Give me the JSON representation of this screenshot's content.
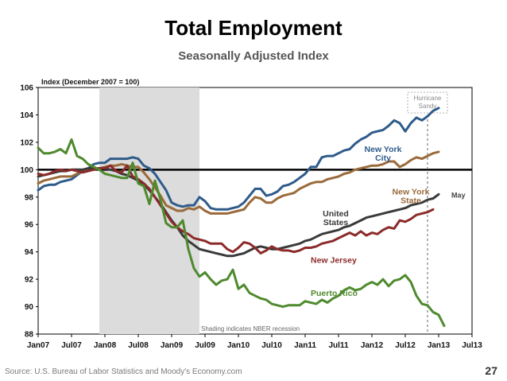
{
  "page": {
    "number": "27"
  },
  "source": "Source: U.S. Bureau of Labor Statistics and Moody's Economy.com",
  "chart_data": {
    "type": "line",
    "title": "Total Employment",
    "subtitle": "Seasonally Adjusted Index",
    "ylabel": "Index (December 2007 = 100)",
    "xlabel": "",
    "ylim": [
      88,
      106
    ],
    "yticks": [
      88,
      90,
      92,
      94,
      96,
      98,
      100,
      102,
      104,
      106
    ],
    "x_start": "2007-01",
    "x_end": "2013-07",
    "xticks": [
      {
        "label": "Jan07",
        "m": 0
      },
      {
        "label": "Jul07",
        "m": 6
      },
      {
        "label": "Jan08",
        "m": 12
      },
      {
        "label": "Jul08",
        "m": 18
      },
      {
        "label": "Jan09",
        "m": 24
      },
      {
        "label": "Jul09",
        "m": 30
      },
      {
        "label": "Jan10",
        "m": 36
      },
      {
        "label": "Jul10",
        "m": 42
      },
      {
        "label": "Jan11",
        "m": 48
      },
      {
        "label": "Jul11",
        "m": 54
      },
      {
        "label": "Jan12",
        "m": 60
      },
      {
        "label": "Jul12",
        "m": 66
      },
      {
        "label": "Jan13",
        "m": 72
      },
      {
        "label": "Jul13",
        "m": 78
      }
    ],
    "reference_line": 100,
    "recession": {
      "start_m": 11,
      "end_m": 29,
      "note": "Shading indicates NBER recession"
    },
    "event": {
      "m": 70,
      "label_lines": [
        "Hurricane",
        "Sandy"
      ]
    },
    "colors": {
      "new_york_city": "#2e5b8a",
      "new_york_state": "#9a6a3a",
      "united_states": "#3a3a3a",
      "new_jersey": "#8c2a2a",
      "puerto_rico": "#4e8a2e",
      "reference": "#000000",
      "recession": "#dcdcdc"
    },
    "series": [
      {
        "name": "New York City",
        "key": "new_york_city",
        "label_lines": [
          "New York",
          "City"
        ],
        "label_at": [
          62,
          101.3
        ],
        "anchor": "middle",
        "width": 3,
        "values": [
          98.5,
          98.8,
          98.9,
          98.9,
          99.1,
          99.2,
          99.3,
          99.6,
          99.9,
          100.1,
          100.4,
          100.5,
          100.5,
          100.8,
          100.8,
          100.8,
          100.8,
          100.9,
          100.8,
          100.3,
          100.1,
          99.7,
          99.1,
          98.5,
          97.6,
          97.4,
          97.3,
          97.4,
          97.4,
          98.0,
          97.7,
          97.2,
          97.1,
          97.1,
          97.1,
          97.2,
          97.3,
          97.6,
          98.1,
          98.6,
          98.6,
          98.1,
          98.2,
          98.4,
          98.8,
          98.9,
          99.1,
          99.4,
          99.7,
          100.2,
          100.2,
          100.9,
          101.0,
          101.0,
          101.2,
          101.4,
          101.5,
          101.9,
          102.2,
          102.4,
          102.7,
          102.8,
          102.9,
          103.2,
          103.6,
          103.4,
          102.8,
          103.4,
          103.8,
          103.6,
          103.9,
          104.3,
          104.5
        ]
      },
      {
        "name": "New York State",
        "key": "new_york_state",
        "label_lines": [
          "New York",
          "State"
        ],
        "label_at": [
          67,
          98.2
        ],
        "anchor": "middle",
        "width": 3,
        "values": [
          99.0,
          99.2,
          99.3,
          99.4,
          99.5,
          99.5,
          99.5,
          99.7,
          99.9,
          100.0,
          100.1,
          100.1,
          100.2,
          100.3,
          100.3,
          100.4,
          100.3,
          100.2,
          100.2,
          99.8,
          99.3,
          98.7,
          98.1,
          97.4,
          97.2,
          97.0,
          97.0,
          97.2,
          97.1,
          97.3,
          97.0,
          96.8,
          96.8,
          96.8,
          96.8,
          96.9,
          97.0,
          97.1,
          97.6,
          98.0,
          97.9,
          97.6,
          97.6,
          97.9,
          98.1,
          98.2,
          98.3,
          98.6,
          98.8,
          99.0,
          99.1,
          99.1,
          99.3,
          99.4,
          99.5,
          99.7,
          99.8,
          100.0,
          100.1,
          100.2,
          100.3,
          100.3,
          100.4,
          100.6,
          100.6,
          100.2,
          100.4,
          100.7,
          100.9,
          100.8,
          101.0,
          101.2,
          101.3
        ]
      },
      {
        "name": "United States",
        "key": "united_states",
        "label_lines": [
          "United",
          "States"
        ],
        "label_at": [
          53.5,
          96.6
        ],
        "anchor": "middle",
        "width": 3,
        "values": [
          99.5,
          99.6,
          99.7,
          99.8,
          99.9,
          99.9,
          100.0,
          100.0,
          100.0,
          100.1,
          100.1,
          100.1,
          100.1,
          100.0,
          99.9,
          99.7,
          99.6,
          99.4,
          99.2,
          98.9,
          98.5,
          98.0,
          97.5,
          96.9,
          96.3,
          95.8,
          95.2,
          94.8,
          94.5,
          94.2,
          94.1,
          94.0,
          93.9,
          93.8,
          93.7,
          93.7,
          93.8,
          93.9,
          94.1,
          94.3,
          94.4,
          94.3,
          94.2,
          94.2,
          94.3,
          94.4,
          94.5,
          94.6,
          94.8,
          94.9,
          95.1,
          95.3,
          95.4,
          95.5,
          95.6,
          95.8,
          95.9,
          96.1,
          96.3,
          96.5,
          96.6,
          96.7,
          96.8,
          96.9,
          97.0,
          97.1,
          97.2,
          97.4,
          97.5,
          97.6,
          97.8,
          97.9,
          98.2
        ]
      },
      {
        "name": "New Jersey",
        "key": "new_jersey",
        "label_lines": [
          "New Jersey"
        ],
        "label_at": [
          49,
          93.2
        ],
        "anchor": "start",
        "width": 3,
        "values": [
          99.7,
          99.6,
          99.7,
          99.9,
          100.0,
          99.9,
          100.0,
          99.9,
          99.8,
          99.9,
          100.0,
          100.1,
          100.1,
          100.3,
          99.9,
          99.8,
          100.3,
          99.5,
          99.3,
          99.0,
          98.6,
          98.0,
          97.4,
          96.8,
          96.2,
          95.8,
          95.5,
          95.3,
          95.0,
          94.9,
          94.8,
          94.6,
          94.6,
          94.6,
          94.2,
          94.0,
          94.3,
          94.7,
          94.6,
          94.3,
          93.9,
          94.1,
          94.4,
          94.2,
          94.1,
          94.1,
          94.0,
          94.1,
          94.3,
          94.3,
          94.4,
          94.6,
          94.7,
          94.8,
          95.0,
          95.2,
          95.4,
          95.2,
          95.5,
          95.2,
          95.4,
          95.3,
          95.6,
          95.8,
          95.7,
          96.3,
          96.2,
          96.4,
          96.7,
          96.8,
          96.9,
          97.1
        ]
      },
      {
        "name": "Puerto Rico",
        "key": "puerto_rico",
        "label_lines": [
          "Puerto Rico"
        ],
        "label_at": [
          49,
          90.8
        ],
        "anchor": "start",
        "width": 3,
        "values": [
          101.6,
          101.2,
          101.2,
          101.3,
          101.5,
          101.2,
          102.2,
          101.0,
          100.8,
          100.4,
          100.2,
          100.0,
          99.7,
          99.6,
          99.5,
          99.4,
          99.4,
          100.5,
          99.0,
          98.8,
          97.5,
          99.2,
          97.8,
          96.1,
          95.8,
          95.8,
          96.3,
          94.2,
          92.8,
          92.2,
          92.5,
          92.0,
          91.6,
          91.9,
          92.0,
          92.7,
          91.3,
          91.6,
          91.0,
          90.8,
          90.6,
          90.5,
          90.2,
          90.1,
          90.0,
          90.1,
          90.1,
          90.1,
          90.4,
          90.3,
          90.2,
          90.5,
          90.3,
          90.6,
          90.8,
          91.2,
          91.4,
          91.2,
          91.3,
          91.6,
          91.8,
          91.6,
          92.0,
          91.5,
          91.9,
          92.0,
          92.3,
          91.8,
          90.8,
          90.2,
          90.1,
          89.6,
          89.4,
          88.6
        ]
      }
    ],
    "end_label": "May"
  }
}
